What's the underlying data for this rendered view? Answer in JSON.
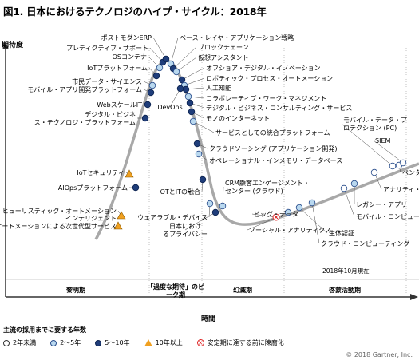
{
  "title": "図1. 日本におけるテクノロジのハイプ・サイクル：2018年",
  "as_of": "2018年10月現在",
  "copyright": "© 2018 Gartner, Inc.",
  "colors": {
    "curve": "#a8a8a8",
    "white_marker": "#ffffff",
    "light_marker": "#b9d8ef",
    "dark_marker": "#1f3d7a",
    "triangle": "#f0a020",
    "obsolete": "#dd2222"
  },
  "chart_data": {
    "type": "scatter",
    "title": "日本におけるテクノロジのハイプ・サイクル：2018年",
    "ylabel": "期待度",
    "xlabel": "時間",
    "phases": [
      "黎明期",
      "「過度な期待」のピーク期",
      "幻滅期",
      "啓蒙活動期"
    ],
    "legend_title": "主流の採用までに要する年数",
    "legend": [
      {
        "key": "lt2",
        "label": "2年未満"
      },
      {
        "key": "2to5",
        "label": "2～5年"
      },
      {
        "key": "5to10",
        "label": "5～10年"
      },
      {
        "key": "gt10",
        "label": "10年以上"
      },
      {
        "key": "obsolete",
        "label": "安定期に達する前に陳腐化"
      }
    ],
    "technologies": [
      {
        "name": "ヒューリスティック・オートメーション",
        "category": "gt10"
      },
      {
        "name": "インテリジェント・オートメーションによる次世代型サービス",
        "category": "gt10"
      },
      {
        "name": "IoTセキュリティ",
        "category": "gt10"
      },
      {
        "name": "AIOpsプラットフォーム",
        "category": "5to10"
      },
      {
        "name": "デジタル・ビジネス・テクノロジ・プラットフォーム",
        "category": "5to10"
      },
      {
        "name": "WebスケールIT",
        "category": "5to10"
      },
      {
        "name": "モバイル・アプリ開発プラットフォーム",
        "category": "5to10"
      },
      {
        "name": "市民データ・サイエンス",
        "category": "2to5"
      },
      {
        "name": "IoTプラットフォーム",
        "category": "5to10"
      },
      {
        "name": "OSコンテナ",
        "category": "2to5"
      },
      {
        "name": "プレディクティブ・サポート",
        "category": "5to10"
      },
      {
        "name": "ポストモダンERP",
        "category": "5to10"
      },
      {
        "name": "ベース・レイヤ・アプリケーション戦略",
        "category": "2to5"
      },
      {
        "name": "ブロックチェーン",
        "category": "5to10"
      },
      {
        "name": "仮想アシスタント",
        "category": "2to5"
      },
      {
        "name": "オフショア・デジタル・イノベーション",
        "category": "5to10"
      },
      {
        "name": "ロボティック・プロセス・オートメーション",
        "category": "2to5"
      },
      {
        "name": "人工知能",
        "category": "5to10"
      },
      {
        "name": "コラボレーティブ・ワーク・マネジメント",
        "category": "2to5"
      },
      {
        "name": "デジタル・ビジネス・コンサルティング・サービス",
        "category": "5to10"
      },
      {
        "name": "モノのインターネット",
        "category": "5to10"
      },
      {
        "name": "DevOps",
        "category": "5to10"
      },
      {
        "name": "サービスとしての統合プラットフォーム",
        "category": "2to5"
      },
      {
        "name": "クラウドソーシング (アプリケーション開発)",
        "category": "5to10"
      },
      {
        "name": "オペレーショナル・インメモリ・データベース",
        "category": "2to5"
      },
      {
        "name": "OTとITの融合",
        "category": "5to10"
      },
      {
        "name": "ウェアラブル・デバイス",
        "category": "2to5"
      },
      {
        "name": "日本におけるプライバシー",
        "category": "5to10"
      },
      {
        "name": "CRM顧客エンゲージメント・センター (クラウド)",
        "category": "2to5"
      },
      {
        "name": "ビッグ・データ",
        "category": "obsolete"
      },
      {
        "name": "ソーシャル・アナリティクス",
        "category": "2to5"
      },
      {
        "name": "生体認証",
        "category": "2to5"
      },
      {
        "name": "クラウド・コンピューティング",
        "category": "2to5"
      },
      {
        "name": "モバイル・コンピューティ",
        "category": "lt2"
      },
      {
        "name": "レガシー・アプリ",
        "category": "2to5"
      },
      {
        "name": "アナリティ・データベー",
        "category": "lt2"
      },
      {
        "name": "ペンタ",
        "category": "lt2"
      },
      {
        "name": "SIEM",
        "category": "lt2"
      },
      {
        "name": "モバイル・データ・プロテクション (PC)",
        "category": "lt2"
      }
    ]
  }
}
